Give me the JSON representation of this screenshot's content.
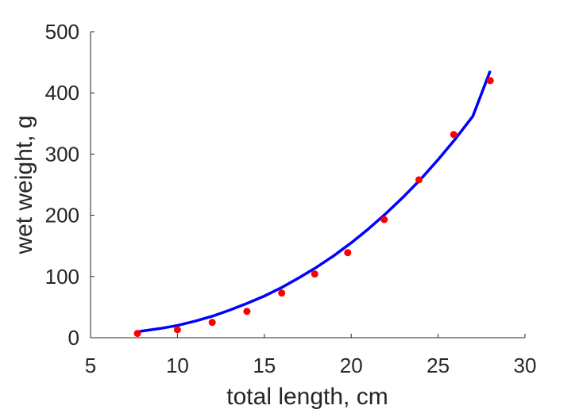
{
  "chart_data": {
    "type": "scatter",
    "xlabel": "total length, cm",
    "ylabel": "wet weight, g",
    "xlim": [
      5,
      30
    ],
    "ylim": [
      0,
      500
    ],
    "xticks": [
      5,
      10,
      15,
      20,
      25,
      30
    ],
    "yticks": [
      0,
      100,
      200,
      300,
      400,
      500
    ],
    "grid": false,
    "colors": {
      "points": "#ff0000",
      "curve": "#0000ff",
      "axes": "#262626"
    },
    "series": [
      {
        "kind": "points",
        "x": [
          7.7,
          10.0,
          12.0,
          14.0,
          16.0,
          17.9,
          19.8,
          21.9,
          23.9,
          25.9,
          28.0
        ],
        "y": [
          7,
          13,
          25,
          43,
          73,
          104,
          139,
          193,
          258,
          332,
          420
        ]
      },
      {
        "kind": "fit-curve",
        "x": [
          7.6,
          8.0,
          9.0,
          10.0,
          11.0,
          12.0,
          13.0,
          14.0,
          15.0,
          16.0,
          17.0,
          18.0,
          19.0,
          20.0,
          21.0,
          22.0,
          23.0,
          24.0,
          25.0,
          26.0,
          27.0,
          28.0
        ],
        "y": [
          9,
          11,
          15,
          20,
          27,
          35,
          45,
          56,
          68,
          82,
          98,
          115,
          134,
          155,
          178,
          203,
          230,
          259,
          291,
          325,
          362,
          436
        ]
      }
    ]
  }
}
